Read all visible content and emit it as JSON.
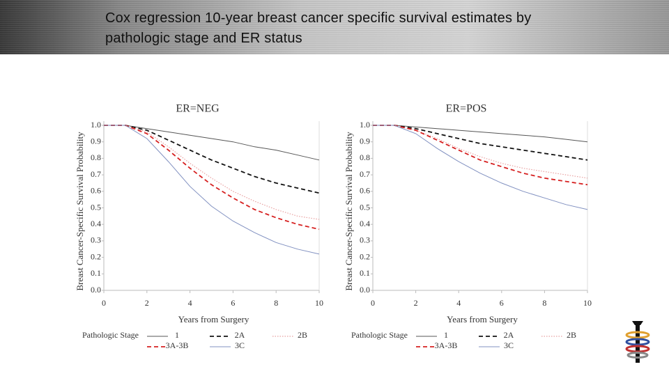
{
  "header": {
    "title": "Cox regression 10-year breast cancer specific survival estimates by pathologic stage and ER status"
  },
  "chart_data": [
    {
      "type": "line",
      "title": "ER=NEG",
      "xlabel": "Years from Surgery",
      "ylabel": "Breast Cancer-Specific Survival Probability",
      "legend_title": "Pathologic Stage",
      "x": [
        0,
        1,
        2,
        3,
        4,
        5,
        6,
        7,
        8,
        9,
        10
      ],
      "xlim": [
        0,
        10
      ],
      "xticks": [
        0,
        2,
        4,
        6,
        8,
        10
      ],
      "ylim": [
        0,
        1
      ],
      "yticks": [
        {
          "value": 0,
          "label": "0.0"
        },
        0.1,
        0.2,
        0.3,
        0.4,
        0.5,
        0.6,
        0.7,
        0.8,
        0.9,
        {
          "value": 1,
          "label": "1.0"
        }
      ],
      "series": [
        {
          "name": "1",
          "color": "#555555",
          "style": "solid",
          "values": [
            1,
            1,
            0.98,
            0.96,
            0.94,
            0.92,
            0.9,
            0.87,
            0.85,
            0.82,
            0.79
          ]
        },
        {
          "name": "2A",
          "color": "#111111",
          "style": "dashed",
          "values": [
            1,
            1,
            0.97,
            0.91,
            0.85,
            0.79,
            0.74,
            0.69,
            0.65,
            0.62,
            0.59
          ]
        },
        {
          "name": "2B",
          "color": "#e8a0a0",
          "style": "dotted",
          "values": [
            1,
            1,
            0.96,
            0.87,
            0.77,
            0.68,
            0.6,
            0.54,
            0.49,
            0.45,
            0.43
          ]
        },
        {
          "name": "3A-3B",
          "color": "#d62020",
          "style": "dashed",
          "values": [
            1,
            1,
            0.95,
            0.85,
            0.74,
            0.64,
            0.56,
            0.49,
            0.44,
            0.4,
            0.37
          ]
        },
        {
          "name": "3C",
          "color": "#8090c0",
          "style": "solid",
          "values": [
            1,
            1,
            0.92,
            0.78,
            0.63,
            0.51,
            0.42,
            0.35,
            0.29,
            0.25,
            0.22
          ]
        }
      ]
    },
    {
      "type": "line",
      "title": "ER=POS",
      "xlabel": "Years from Surgery",
      "ylabel": "Breast Cancer-Specific Survival Probability",
      "legend_title": "Pathologic Stage",
      "x": [
        0,
        1,
        2,
        3,
        4,
        5,
        6,
        7,
        8,
        9,
        10
      ],
      "xlim": [
        0,
        10
      ],
      "xticks": [
        0,
        2,
        4,
        6,
        8,
        10
      ],
      "ylim": [
        0,
        1
      ],
      "yticks": [
        {
          "value": 0,
          "label": "0.0"
        },
        0.1,
        0.2,
        0.3,
        0.4,
        0.5,
        0.6,
        0.7,
        0.8,
        0.9,
        {
          "value": 1,
          "label": "1.0"
        }
      ],
      "series": [
        {
          "name": "1",
          "color": "#555555",
          "style": "solid",
          "values": [
            1,
            1,
            0.99,
            0.98,
            0.97,
            0.96,
            0.95,
            0.94,
            0.93,
            0.915,
            0.9
          ]
        },
        {
          "name": "2A",
          "color": "#111111",
          "style": "dashed",
          "values": [
            1,
            1,
            0.98,
            0.95,
            0.92,
            0.89,
            0.87,
            0.85,
            0.83,
            0.81,
            0.79
          ]
        },
        {
          "name": "2B",
          "color": "#e8a0a0",
          "style": "dotted",
          "values": [
            1,
            1,
            0.97,
            0.92,
            0.86,
            0.81,
            0.77,
            0.74,
            0.72,
            0.7,
            0.68
          ]
        },
        {
          "name": "3A-3B",
          "color": "#d62020",
          "style": "dashed",
          "values": [
            1,
            1,
            0.97,
            0.91,
            0.85,
            0.79,
            0.75,
            0.71,
            0.68,
            0.66,
            0.64
          ]
        },
        {
          "name": "3C",
          "color": "#8090c0",
          "style": "solid",
          "values": [
            1,
            1,
            0.95,
            0.86,
            0.78,
            0.71,
            0.65,
            0.6,
            0.56,
            0.52,
            0.49
          ]
        }
      ]
    }
  ]
}
